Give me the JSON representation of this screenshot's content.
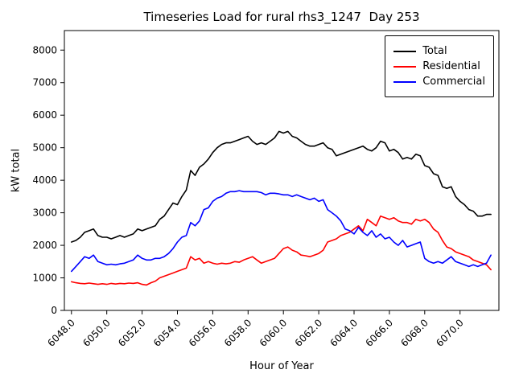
{
  "chart_data": {
    "type": "line",
    "title": "Timeseries Load for rural rhs3_1247  Day 253",
    "xlabel": "Hour of Year",
    "ylabel": "kW total",
    "xlim": [
      6047.6,
      6072.2
    ],
    "ylim": [
      0,
      8600
    ],
    "grid": false,
    "legend_position": "upper right",
    "x_ticks": [
      6048,
      6050,
      6052,
      6054,
      6056,
      6058,
      6060,
      6062,
      6064,
      6066,
      6068,
      6070
    ],
    "x_tick_labels": [
      "6048.0",
      "6050.0",
      "6052.0",
      "6054.0",
      "6056.0",
      "6058.0",
      "6060.0",
      "6062.0",
      "6064.0",
      "6066.0",
      "6068.0",
      "6070.0"
    ],
    "y_ticks": [
      0,
      1000,
      2000,
      3000,
      4000,
      5000,
      6000,
      7000,
      8000
    ],
    "y_tick_labels": [
      "0",
      "1000",
      "2000",
      "3000",
      "4000",
      "5000",
      "6000",
      "7000",
      "8000"
    ],
    "x": [
      6048.0,
      6048.25,
      6048.5,
      6048.75,
      6049.0,
      6049.25,
      6049.5,
      6049.75,
      6050.0,
      6050.25,
      6050.5,
      6050.75,
      6051.0,
      6051.25,
      6051.5,
      6051.75,
      6052.0,
      6052.25,
      6052.5,
      6052.75,
      6053.0,
      6053.25,
      6053.5,
      6053.75,
      6054.0,
      6054.25,
      6054.5,
      6054.75,
      6055.0,
      6055.25,
      6055.5,
      6055.75,
      6056.0,
      6056.25,
      6056.5,
      6056.75,
      6057.0,
      6057.25,
      6057.5,
      6057.75,
      6058.0,
      6058.25,
      6058.5,
      6058.75,
      6059.0,
      6059.25,
      6059.5,
      6059.75,
      6060.0,
      6060.25,
      6060.5,
      6060.75,
      6061.0,
      6061.25,
      6061.5,
      6061.75,
      6062.0,
      6062.25,
      6062.5,
      6062.75,
      6063.0,
      6063.25,
      6063.5,
      6063.75,
      6064.0,
      6064.25,
      6064.5,
      6064.75,
      6065.0,
      6065.25,
      6065.5,
      6065.75,
      6066.0,
      6066.25,
      6066.5,
      6066.75,
      6067.0,
      6067.25,
      6067.5,
      6067.75,
      6068.0,
      6068.25,
      6068.5,
      6068.75,
      6069.0,
      6069.25,
      6069.5,
      6069.75,
      6070.0,
      6070.25,
      6070.5,
      6070.75,
      6071.0,
      6071.25,
      6071.5,
      6071.75
    ],
    "series": [
      {
        "name": "Total",
        "color": "#000000",
        "values": [
          2100,
          2150,
          2250,
          2400,
          2450,
          2500,
          2300,
          2250,
          2250,
          2200,
          2250,
          2300,
          2250,
          2300,
          2350,
          2500,
          2450,
          2500,
          2550,
          2600,
          2800,
          2900,
          3100,
          3300,
          3250,
          3500,
          3700,
          4300,
          4150,
          4400,
          4500,
          4650,
          4850,
          5000,
          5100,
          5150,
          5150,
          5200,
          5250,
          5300,
          5350,
          5200,
          5100,
          5150,
          5100,
          5200,
          5300,
          5500,
          5450,
          5500,
          5350,
          5300,
          5200,
          5100,
          5050,
          5050,
          5100,
          5150,
          5000,
          4950,
          4750,
          4800,
          4850,
          4900,
          4950,
          5000,
          5050,
          4950,
          4900,
          5000,
          5200,
          5150,
          4900,
          4950,
          4850,
          4650,
          4700,
          4650,
          4800,
          4750,
          4450,
          4400,
          4200,
          4150,
          3800,
          3750,
          3800,
          3500,
          3350,
          3250,
          3100,
          3050,
          2900,
          2900,
          2950,
          2950
        ]
      },
      {
        "name": "Residential",
        "color": "#ff0000",
        "values": [
          880,
          850,
          830,
          820,
          840,
          820,
          800,
          820,
          800,
          830,
          810,
          830,
          820,
          840,
          830,
          850,
          800,
          780,
          850,
          900,
          1000,
          1050,
          1100,
          1150,
          1200,
          1250,
          1300,
          1650,
          1550,
          1600,
          1450,
          1500,
          1450,
          1420,
          1450,
          1430,
          1450,
          1500,
          1480,
          1550,
          1600,
          1650,
          1550,
          1450,
          1500,
          1550,
          1600,
          1750,
          1900,
          1950,
          1850,
          1800,
          1700,
          1680,
          1650,
          1700,
          1750,
          1850,
          2100,
          2150,
          2200,
          2300,
          2350,
          2400,
          2500,
          2600,
          2450,
          2800,
          2700,
          2600,
          2900,
          2850,
          2800,
          2850,
          2750,
          2700,
          2700,
          2650,
          2800,
          2750,
          2800,
          2700,
          2500,
          2400,
          2150,
          1950,
          1900,
          1800,
          1750,
          1700,
          1650,
          1550,
          1500,
          1450,
          1400,
          1250
        ]
      },
      {
        "name": "Commercial",
        "color": "#0000ff",
        "values": [
          1200,
          1350,
          1500,
          1650,
          1600,
          1700,
          1500,
          1450,
          1400,
          1420,
          1400,
          1430,
          1450,
          1500,
          1550,
          1700,
          1600,
          1550,
          1550,
          1600,
          1600,
          1650,
          1750,
          1900,
          2100,
          2250,
          2300,
          2700,
          2600,
          2750,
          3100,
          3150,
          3350,
          3450,
          3500,
          3600,
          3650,
          3650,
          3680,
          3650,
          3650,
          3650,
          3650,
          3620,
          3550,
          3600,
          3600,
          3580,
          3550,
          3550,
          3500,
          3550,
          3500,
          3450,
          3400,
          3450,
          3350,
          3400,
          3100,
          3000,
          2900,
          2750,
          2500,
          2450,
          2350,
          2550,
          2400,
          2300,
          2450,
          2250,
          2350,
          2200,
          2250,
          2100,
          2000,
          2150,
          1950,
          2000,
          2050,
          2100,
          1600,
          1500,
          1450,
          1500,
          1450,
          1550,
          1650,
          1500,
          1450,
          1400,
          1350,
          1400,
          1350,
          1400,
          1450,
          1700
        ]
      }
    ]
  }
}
